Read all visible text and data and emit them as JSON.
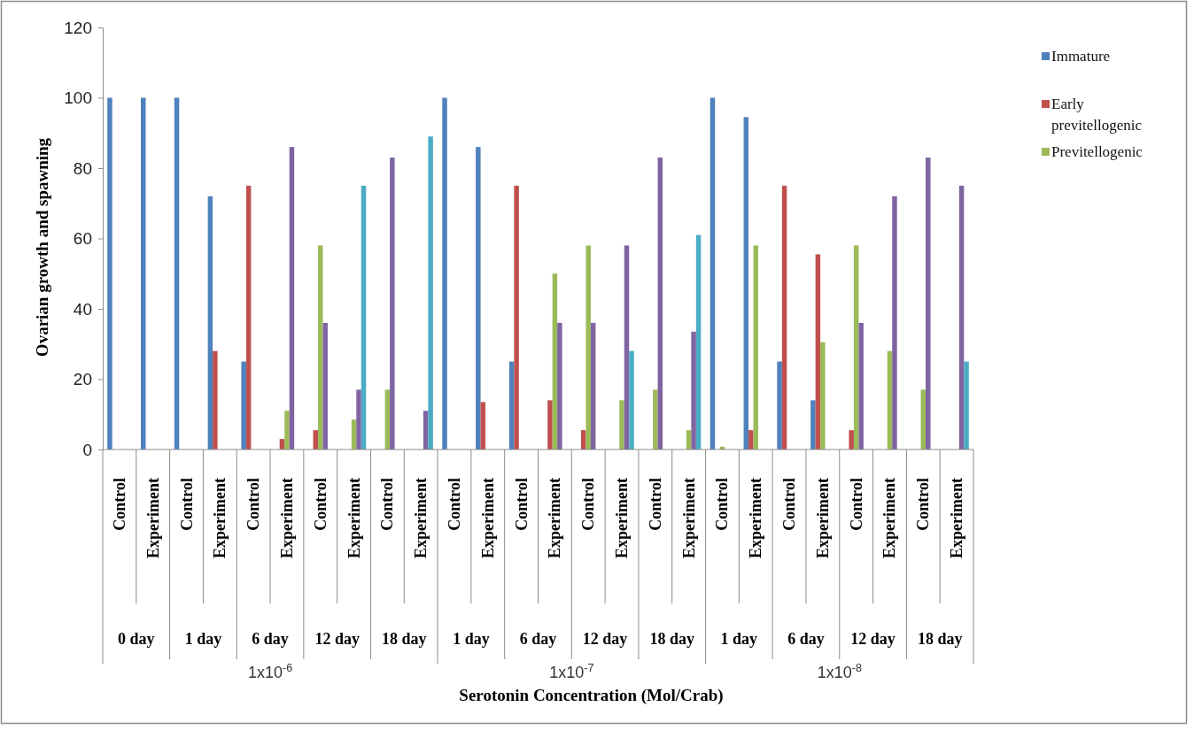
{
  "chart_data": {
    "type": "bar",
    "ylabel": "Ovarian growth and spawning",
    "categories": [
      "Control",
      "Experiment",
      "Control",
      "Experiment",
      "Control",
      "Experiment",
      "Control",
      "Experiment",
      "Control",
      "Experiment",
      "Control",
      "Experiment",
      "Control",
      "Experiment",
      "Control",
      "Experiment",
      "Control",
      "Experiment",
      "Control",
      "Experiment",
      "Control",
      "Experiment",
      "Control",
      "Experiment",
      "Control",
      "Experiment"
    ],
    "annotations": [
      "0 day",
      "1 day",
      "6 day",
      "12 day",
      "18 day",
      "1 day",
      "6 day",
      "12 day",
      "18 day",
      "1 day",
      "6 day",
      "12 day",
      "18 day",
      "1x10$^{-6}$",
      "1x10$^{-7}$",
      "1x10$^{-8}$",
      "Serotonin Concentration (Mol/Crab)"
    ],
    "series": [
      {
        "name": "Immature",
        "color": "#4f81bd",
        "values": [
          100,
          100,
          100,
          72,
          25,
          null,
          null,
          null,
          null,
          null,
          100,
          86,
          25,
          null,
          null,
          null,
          null,
          null,
          100,
          94.5,
          25,
          14,
          null,
          null,
          null,
          null
        ]
      },
      {
        "name": "Early previtellogenic",
        "color": "#c0504d",
        "values": [
          null,
          null,
          null,
          28,
          75,
          3,
          5.5,
          null,
          null,
          null,
          null,
          13.5,
          75,
          14,
          5.5,
          null,
          null,
          null,
          null,
          5.5,
          75,
          55.5,
          5.5,
          null,
          null,
          null
        ]
      },
      {
        "name": "Previtellogenic",
        "color": "#9bbb59",
        "values": [
          null,
          null,
          null,
          null,
          null,
          11,
          58,
          8.5,
          17,
          null,
          null,
          null,
          null,
          50,
          58,
          14,
          17,
          5.5,
          0.8,
          58,
          null,
          30.5,
          58,
          28,
          17,
          null
        ]
      },
      {
        "color": "#8064a2",
        "values": [
          null,
          null,
          null,
          null,
          null,
          86,
          36,
          17,
          83,
          11,
          null,
          null,
          null,
          36,
          36,
          58,
          83,
          33.5,
          null,
          null,
          null,
          null,
          36,
          72,
          83,
          75
        ]
      },
      {
        "color": "#4bacc6",
        "values": [
          null,
          null,
          null,
          null,
          null,
          null,
          null,
          75,
          null,
          89,
          null,
          null,
          null,
          null,
          null,
          28,
          null,
          61,
          null,
          null,
          null,
          null,
          null,
          null,
          null,
          25
        ]
      }
    ],
    "ylim": [
      0,
      120
    ],
    "yticks": [
      0,
      20,
      40,
      60,
      80,
      100,
      120
    ],
    "grid": false,
    "legend": "right"
  }
}
